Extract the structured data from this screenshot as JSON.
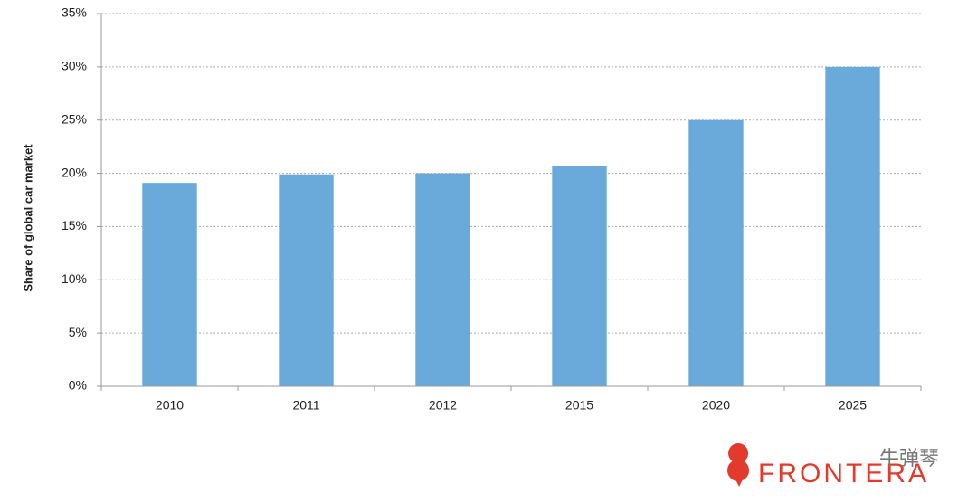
{
  "chart_data": {
    "type": "bar",
    "y_label": "Share of global car market",
    "categories": [
      "2010",
      "2011",
      "2012",
      "2015",
      "2020",
      "2025"
    ],
    "values": [
      19.1,
      19.9,
      20.0,
      20.7,
      25.0,
      30.0
    ],
    "color": "#6aaadb",
    "ylim": [
      0,
      35
    ],
    "yticks": [
      {
        "value": 0,
        "label": "0%"
      },
      {
        "value": 5,
        "label": "5%"
      },
      {
        "value": 10,
        "label": "10%"
      },
      {
        "value": 15,
        "label": "15%"
      },
      {
        "value": 20,
        "label": "20%"
      },
      {
        "value": 25,
        "label": "25%"
      },
      {
        "value": 30,
        "label": "30%"
      },
      {
        "value": 35,
        "label": "35%"
      }
    ],
    "grid": true,
    "logo": "FRONTERA",
    "watermark": "牛弹琴"
  }
}
